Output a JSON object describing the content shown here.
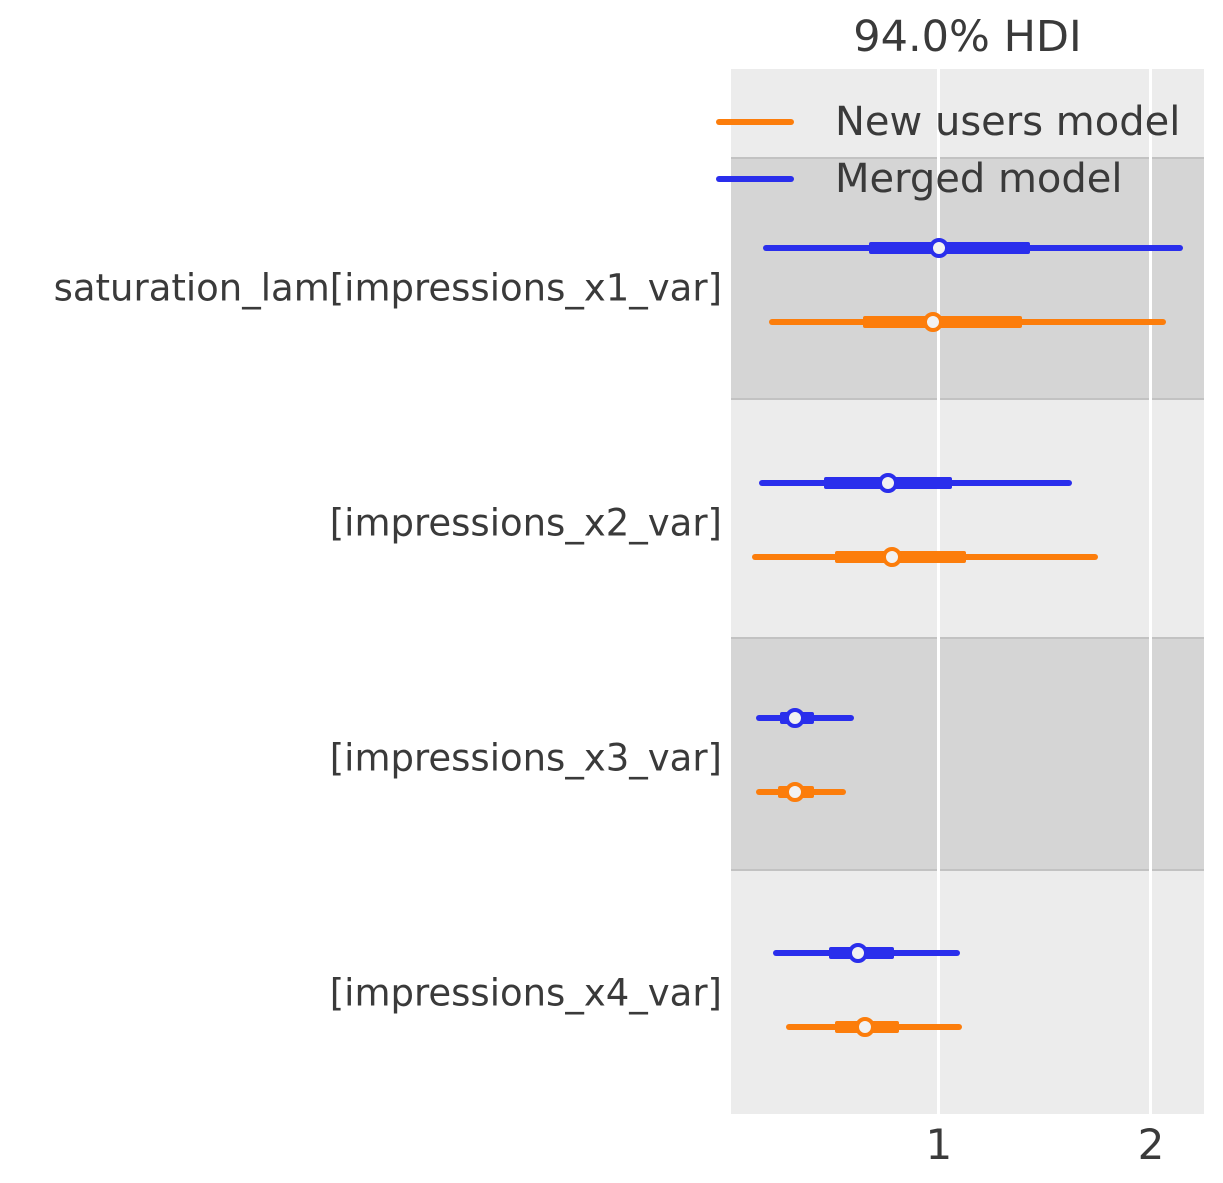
{
  "chart_data": {
    "type": "forest",
    "title": "94.0% HDI",
    "hdi_prob": 0.94,
    "xlim": [
      0.02,
      2.25
    ],
    "x_ticks": [
      "1",
      "2"
    ],
    "grid": "vertical-white-gridlines",
    "legend_position": "top-inside",
    "colors": {
      "merged_model": "#2a2eec",
      "new_users_model": "#fc7d0b",
      "plot_background": "#ececec",
      "shaded_band": "#d5d5d5",
      "text": "#3a3a3a",
      "marker_fill": "#f2f2f2"
    },
    "legend": [
      {
        "label": "New users model",
        "color": "#fc7d0b"
      },
      {
        "label": "Merged model",
        "color": "#2a2eec"
      }
    ],
    "parameters": [
      {
        "label": "saturation_lam[impressions_x1_var]",
        "shaded": true,
        "models": [
          {
            "name": "Merged model",
            "color": "#2a2eec",
            "hdi_94": [
              0.17,
              2.15
            ],
            "iqr": [
              0.67,
              1.43
            ],
            "median": 1.0
          },
          {
            "name": "New users model",
            "color": "#fc7d0b",
            "hdi_94": [
              0.2,
              2.07
            ],
            "iqr": [
              0.64,
              1.39
            ],
            "median": 0.97
          }
        ]
      },
      {
        "label": "[impressions_x2_var]",
        "shaded": false,
        "models": [
          {
            "name": "Merged model",
            "color": "#2a2eec",
            "hdi_94": [
              0.15,
              1.63
            ],
            "iqr": [
              0.46,
              1.06
            ],
            "median": 0.76
          },
          {
            "name": "New users model",
            "color": "#fc7d0b",
            "hdi_94": [
              0.12,
              1.75
            ],
            "iqr": [
              0.51,
              1.13
            ],
            "median": 0.78
          }
        ]
      },
      {
        "label": "[impressions_x3_var]",
        "shaded": true,
        "models": [
          {
            "name": "Merged model",
            "color": "#2a2eec",
            "hdi_94": [
              0.14,
              0.6
            ],
            "iqr": [
              0.25,
              0.41
            ],
            "median": 0.32
          },
          {
            "name": "New users model",
            "color": "#fc7d0b",
            "hdi_94": [
              0.14,
              0.56
            ],
            "iqr": [
              0.24,
              0.41
            ],
            "median": 0.32
          }
        ]
      },
      {
        "label": "[impressions_x4_var]",
        "shaded": false,
        "models": [
          {
            "name": "Merged model",
            "color": "#2a2eec",
            "hdi_94": [
              0.22,
              1.1
            ],
            "iqr": [
              0.48,
              0.79
            ],
            "median": 0.62
          },
          {
            "name": "New users model",
            "color": "#fc7d0b",
            "hdi_94": [
              0.28,
              1.11
            ],
            "iqr": [
              0.51,
              0.81
            ],
            "median": 0.65
          }
        ]
      }
    ]
  }
}
